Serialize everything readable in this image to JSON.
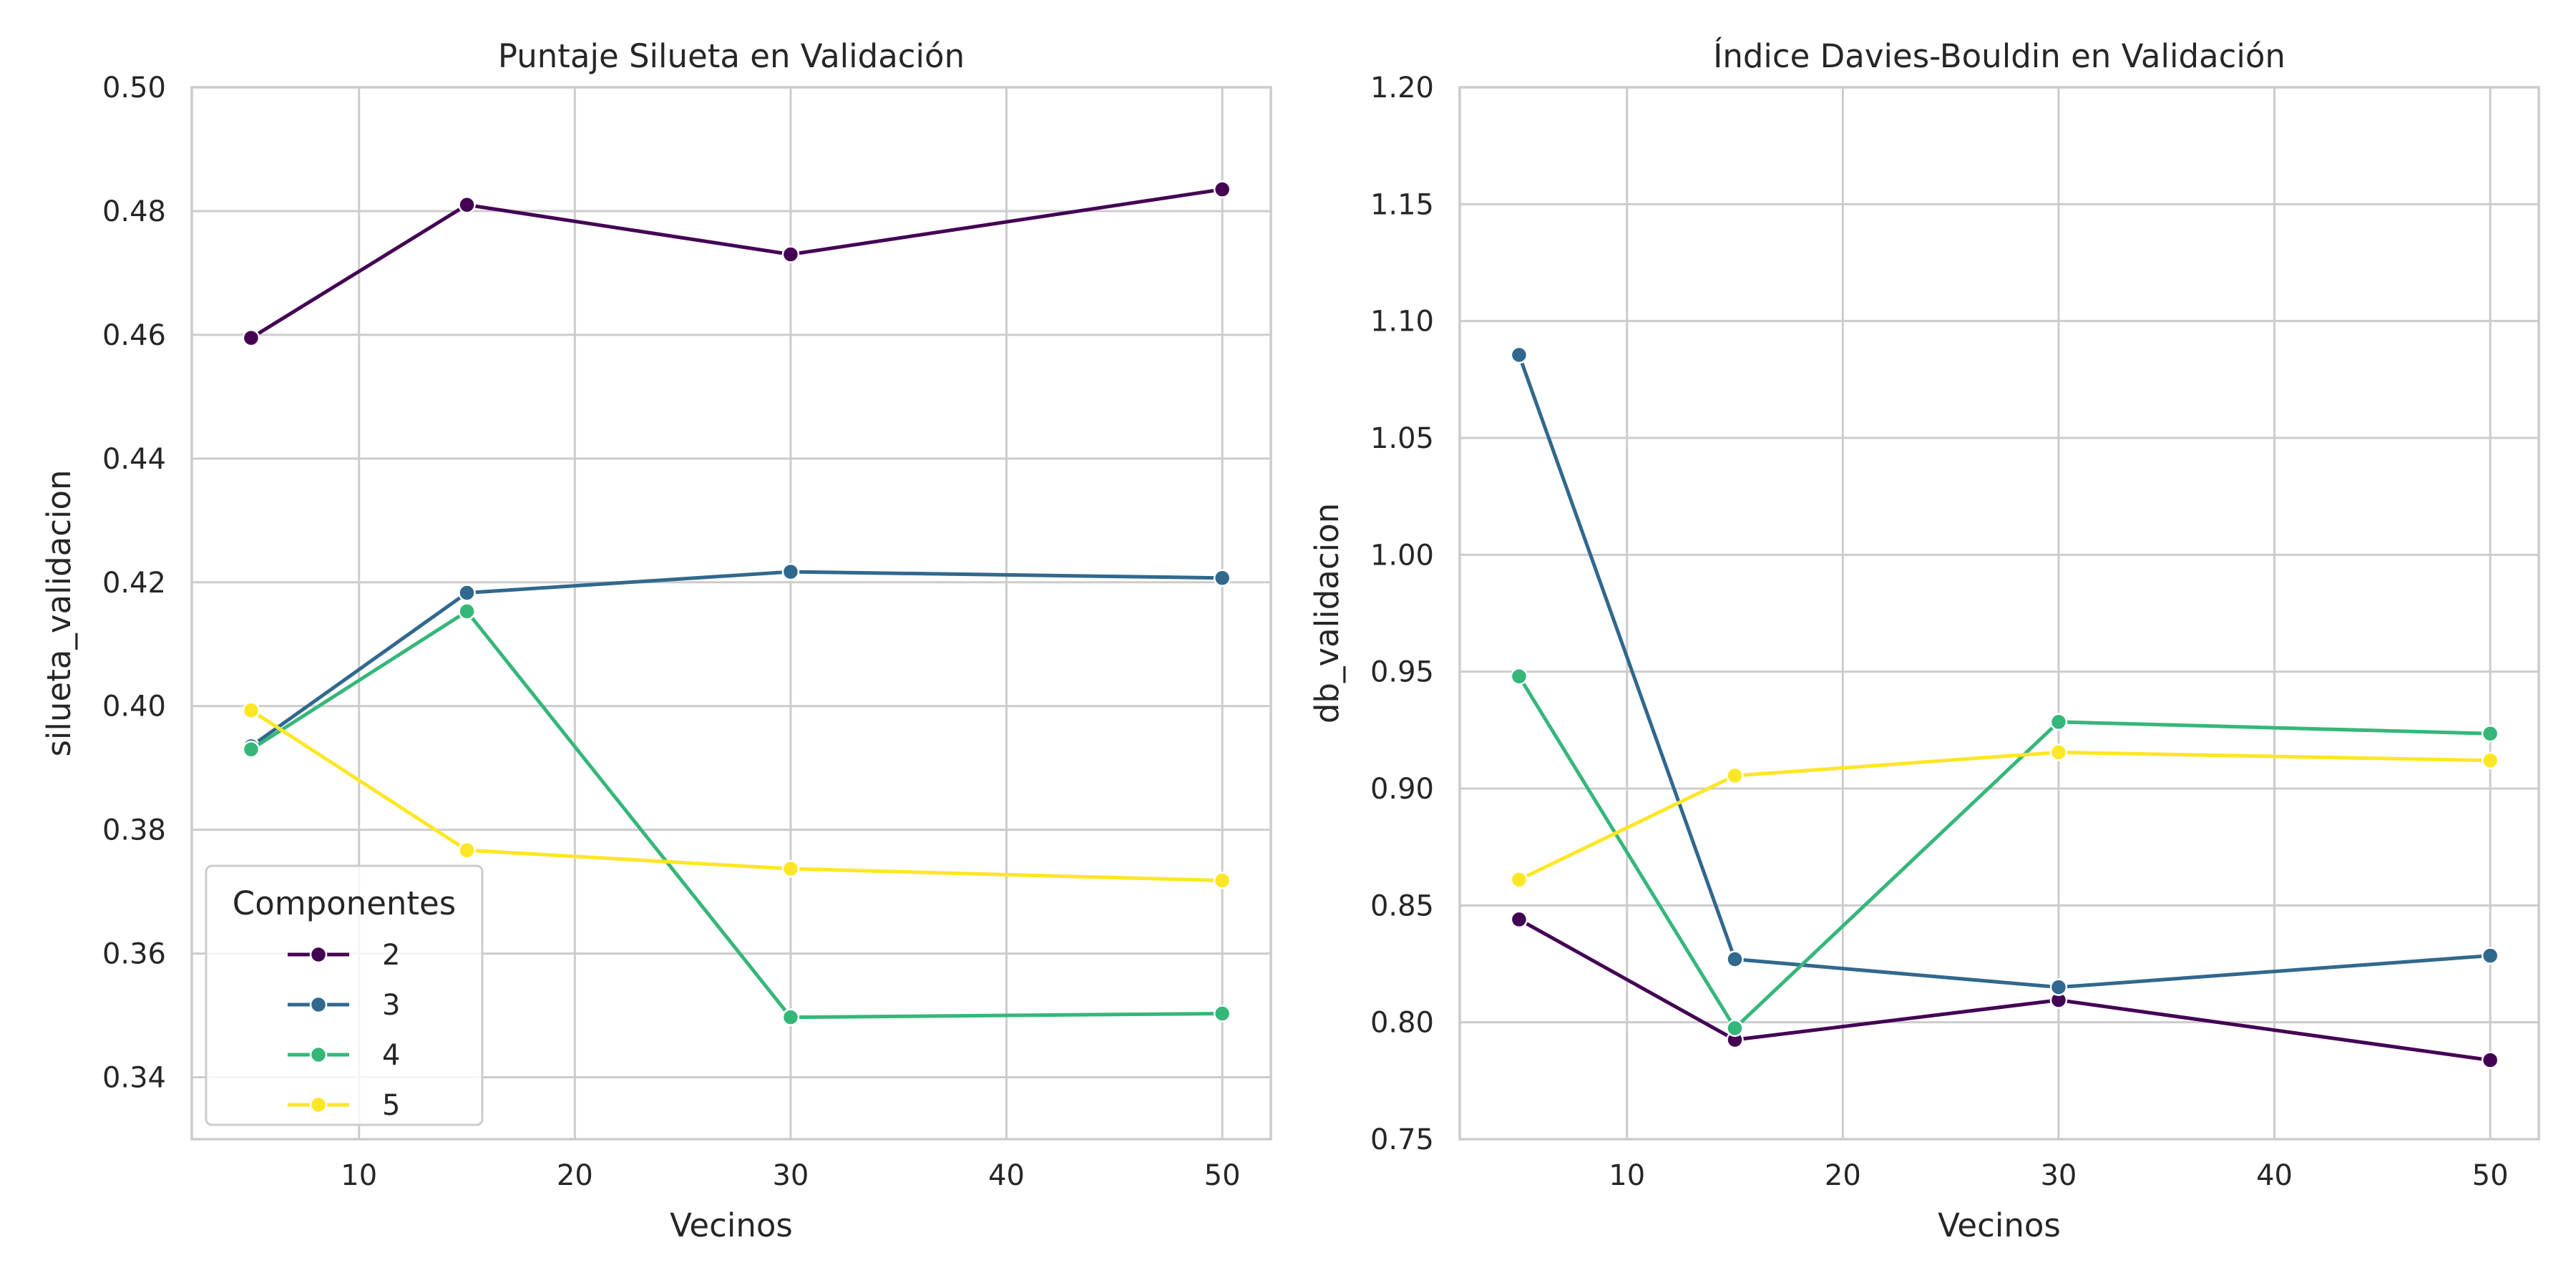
{
  "chart_data": [
    {
      "type": "line",
      "title": "Puntaje Silueta en Validación",
      "xlabel": "Vecinos",
      "ylabel": "silueta_validacion",
      "x": [
        5,
        15,
        30,
        50
      ],
      "xlim": [
        2.25,
        52.25
      ],
      "ylim": [
        0.33,
        0.5
      ],
      "xticks": [
        10,
        20,
        30,
        40,
        50
      ],
      "yticks": [
        0.34,
        0.36,
        0.38,
        0.4,
        0.42,
        0.44,
        0.46,
        0.48,
        0.5
      ],
      "grid": true,
      "legend": {
        "title": "Componentes",
        "placement": "lower-left"
      },
      "series": [
        {
          "name": "2",
          "color": "#440154",
          "values": [
            0.4595,
            0.481,
            0.473,
            0.4835
          ]
        },
        {
          "name": "3",
          "color": "#31688e",
          "values": [
            0.3935,
            0.4183,
            0.4217,
            0.4207
          ]
        },
        {
          "name": "4",
          "color": "#35b779",
          "values": [
            0.393,
            0.4153,
            0.3497,
            0.3503
          ]
        },
        {
          "name": "5",
          "color": "#fde725",
          "values": [
            0.3993,
            0.3767,
            0.3737,
            0.3718
          ]
        }
      ]
    },
    {
      "type": "line",
      "title": "Índice Davies-Bouldin en Validación",
      "xlabel": "Vecinos",
      "ylabel": "db_validacion",
      "x": [
        5,
        15,
        30,
        50
      ],
      "xlim": [
        2.25,
        52.25
      ],
      "ylim": [
        0.75,
        1.2
      ],
      "xticks": [
        10,
        20,
        30,
        40,
        50
      ],
      "yticks": [
        0.75,
        0.8,
        0.85,
        0.9,
        0.95,
        1.0,
        1.05,
        1.1,
        1.15,
        1.2
      ],
      "grid": true,
      "series": [
        {
          "name": "2",
          "color": "#440154",
          "values": [
            0.844,
            0.7925,
            0.8095,
            0.7838
          ]
        },
        {
          "name": "3",
          "color": "#31688e",
          "values": [
            1.0855,
            0.827,
            0.815,
            0.8285
          ]
        },
        {
          "name": "4",
          "color": "#35b779",
          "values": [
            0.948,
            0.7975,
            0.9285,
            0.9235
          ]
        },
        {
          "name": "5",
          "color": "#fde725",
          "values": [
            0.861,
            0.9055,
            0.9155,
            0.912
          ]
        }
      ]
    }
  ]
}
